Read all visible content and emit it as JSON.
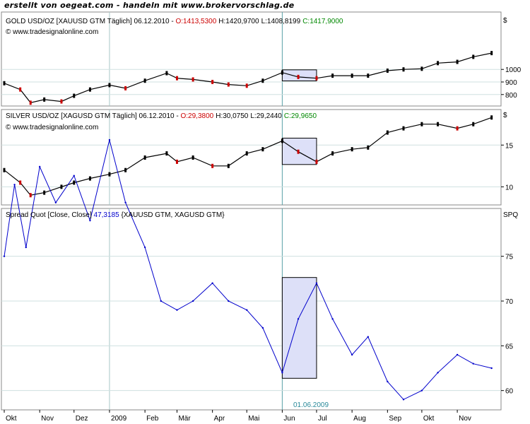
{
  "credit": "erstellt von oegeat.com - handeln mit www.brokervorschlag.de",
  "chart_data": [
    {
      "type": "line",
      "panel": "gold",
      "header_name": "GOLD USD/OZ [XAUUSD GTM  Täglich] 06.12.2010 - ",
      "ohlc": {
        "open": "O:1413,5300",
        "high": "H:1420,9700",
        "low": "L:1408,8199",
        "close": "C:1417,9000"
      },
      "source": "© www.tradesignalonline.com",
      "unit": "$",
      "yticks": [
        800,
        900,
        1000
      ],
      "ylim": [
        720,
        1440
      ],
      "colors": {
        "up": "#000000",
        "down": "#cc0000",
        "open": "#cc0000",
        "close": "#008800"
      },
      "x": [
        "2008-10-01",
        "2008-10-15",
        "2008-10-24",
        "2008-11-05",
        "2008-11-20",
        "2008-12-01",
        "2008-12-15",
        "2009-01-01",
        "2009-01-15",
        "2009-02-01",
        "2009-02-20",
        "2009-03-01",
        "2009-03-15",
        "2009-04-01",
        "2009-04-15",
        "2009-05-01",
        "2009-05-15",
        "2009-06-01",
        "2009-06-15",
        "2009-07-01",
        "2009-07-15",
        "2009-08-01",
        "2009-08-15",
        "2009-09-01",
        "2009-09-15",
        "2009-10-01",
        "2009-10-15",
        "2009-11-01",
        "2009-11-15",
        "2009-12-01"
      ],
      "values": [
        890,
        840,
        735,
        760,
        745,
        790,
        840,
        875,
        850,
        910,
        970,
        930,
        920,
        900,
        880,
        870,
        910,
        975,
        940,
        930,
        950,
        950,
        950,
        990,
        1000,
        1005,
        1050,
        1060,
        1100,
        1130
      ]
    },
    {
      "type": "line",
      "panel": "silver",
      "header_name": "SILVER USD/OZ [XAGUSD GTM  Täglich] 06.12.2010 - ",
      "ohlc": {
        "open": "O:29,3800",
        "high": "H:30,0750",
        "low": "L:29,2440",
        "close": "C:29,9650"
      },
      "source": "© www.tradesignalonline.com",
      "unit": "$",
      "yticks": [
        10,
        15
      ],
      "ylim": [
        8,
        19
      ],
      "colors": {
        "up": "#000000",
        "down": "#cc0000",
        "open": "#cc0000",
        "close": "#008800"
      },
      "x": [
        "2008-10-01",
        "2008-10-15",
        "2008-10-24",
        "2008-11-05",
        "2008-11-20",
        "2008-12-01",
        "2008-12-15",
        "2009-01-01",
        "2009-01-15",
        "2009-02-01",
        "2009-02-20",
        "2009-03-01",
        "2009-03-15",
        "2009-04-01",
        "2009-04-15",
        "2009-05-01",
        "2009-05-15",
        "2009-06-01",
        "2009-06-15",
        "2009-07-01",
        "2009-07-15",
        "2009-08-01",
        "2009-08-15",
        "2009-09-01",
        "2009-09-15",
        "2009-10-01",
        "2009-10-15",
        "2009-11-01",
        "2009-11-15",
        "2009-12-01"
      ],
      "values": [
        12.0,
        10.5,
        9.0,
        9.3,
        10.0,
        10.5,
        11.0,
        11.5,
        12.0,
        13.5,
        14.0,
        13.0,
        13.5,
        12.5,
        12.5,
        14.0,
        14.5,
        15.5,
        14.2,
        13.0,
        14.0,
        14.5,
        14.7,
        16.5,
        17.0,
        17.5,
        17.5,
        17.0,
        17.5,
        18.3
      ]
    },
    {
      "type": "line",
      "panel": "spread",
      "header_name": "Spread Quot [Close, Close] ",
      "value": "47,3185",
      "header_suffix": " {XAUUSD GTM, XAGUSD GTM}",
      "unit": "SPQ",
      "yticks": [
        60,
        65,
        70,
        75
      ],
      "ylim": [
        58,
        79
      ],
      "marker_label": "01.06.2009",
      "colors": {
        "line": "#0000cc",
        "value": "#0000cc"
      },
      "x": [
        "2008-10-01",
        "2008-10-10",
        "2008-10-20",
        "2008-11-01",
        "2008-11-15",
        "2008-12-01",
        "2008-12-15",
        "2009-01-01",
        "2009-01-15",
        "2009-02-01",
        "2009-02-15",
        "2009-03-01",
        "2009-03-15",
        "2009-04-01",
        "2009-04-15",
        "2009-05-01",
        "2009-05-15",
        "2009-06-01",
        "2009-06-15",
        "2009-07-01",
        "2009-07-15",
        "2009-08-01",
        "2009-08-15",
        "2009-09-01",
        "2009-09-15",
        "2009-10-01",
        "2009-10-15",
        "2009-11-01",
        "2009-11-15",
        "2009-12-01"
      ],
      "values": [
        75,
        83,
        76,
        85,
        81,
        84,
        79,
        88,
        81,
        76,
        70,
        69,
        70,
        72,
        70,
        69,
        67,
        62,
        68,
        72,
        68,
        64,
        66,
        61,
        59,
        60,
        62,
        64,
        63,
        62.5
      ]
    }
  ],
  "x_axis": {
    "labels": [
      "Okt",
      "Nov",
      "Dez",
      "2009",
      "Feb",
      "Mär",
      "Apr",
      "Mai",
      "Jun",
      "Jul",
      "Aug",
      "Sep",
      "Okt",
      "Nov"
    ],
    "dates": [
      "2008-10-01",
      "2008-11-01",
      "2008-12-01",
      "2009-01-01",
      "2009-02-01",
      "2009-03-01",
      "2009-04-01",
      "2009-05-01",
      "2009-06-01",
      "2009-07-01",
      "2009-08-01",
      "2009-09-01",
      "2009-10-01",
      "2009-11-01"
    ]
  },
  "highlight": {
    "start": "2009-06-01",
    "end": "2009-07-01",
    "color": "#dde0f8"
  }
}
